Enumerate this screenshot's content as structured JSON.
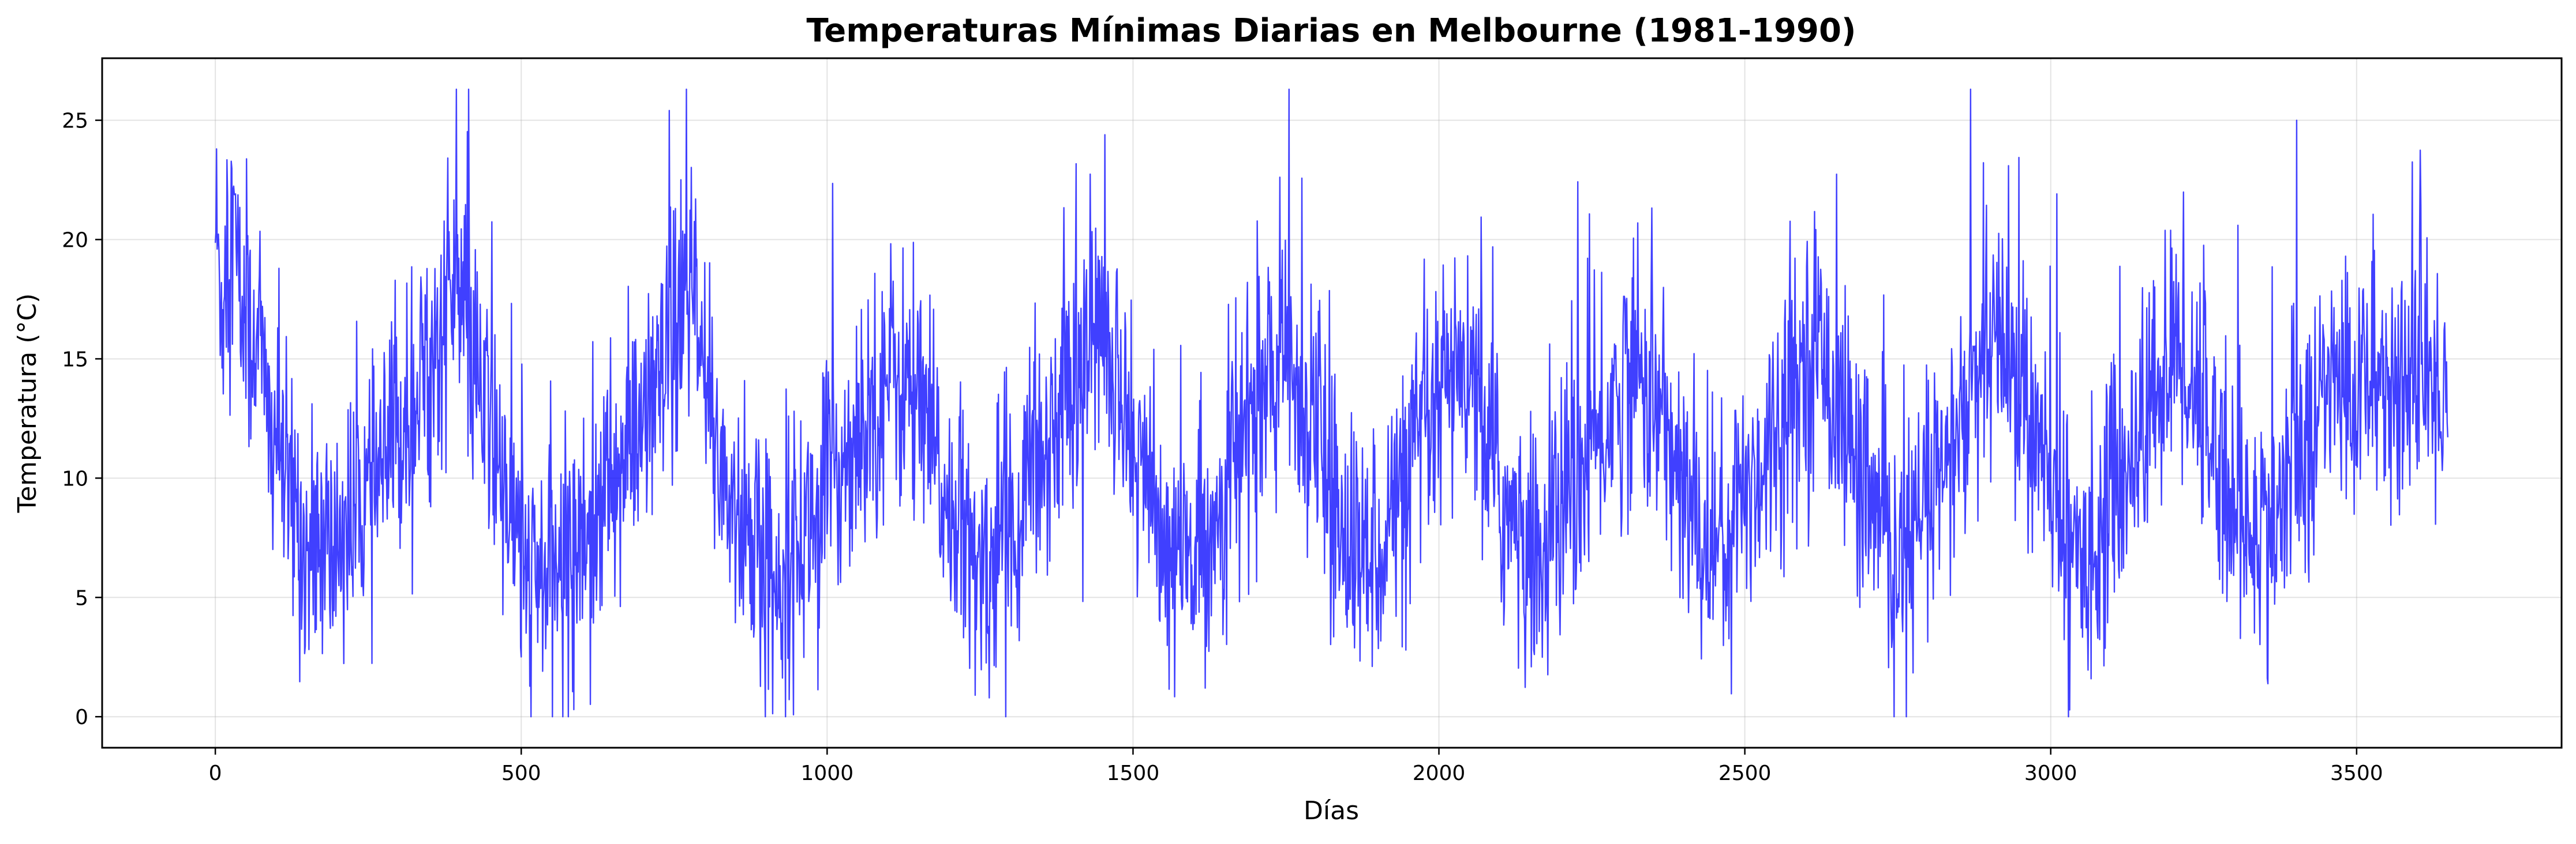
{
  "chart_data": {
    "type": "line",
    "title": "Temperaturas Mínimas Diarias en Melbourne (1981-1990)",
    "xlabel": "Días",
    "ylabel": "Temperatura (°C)",
    "xlim": [
      -185,
      3835
    ],
    "ylim": [
      -1.3,
      27.6
    ],
    "xticks": [
      0,
      500,
      1000,
      1500,
      2000,
      2500,
      3000,
      3500
    ],
    "yticks": [
      0,
      5,
      10,
      15,
      20,
      25
    ],
    "grid": true,
    "line_color": "#0000ff",
    "n_points": 3650,
    "series": [
      {
        "values_approx_every_10_days": [
          20.7,
          17.4,
          18.8,
          21.1,
          17.2,
          16.6,
          15.3,
          17.5,
          13.5,
          11.3,
          12.5,
          10.4,
          9.0,
          8.9,
          7.8,
          6.8,
          6.1,
          7.5,
          6.9,
          6.6,
          7.4,
          8.1,
          7.8,
          8.4,
          9.3,
          8.9,
          9.3,
          10.1,
          10.6,
          11.0,
          11.7,
          12.6,
          12.8,
          13.6,
          13.9,
          14.8,
          15.2,
          16.0,
          17.9,
          18.1,
          17.5,
          15.7,
          15.0,
          13.6,
          12.8,
          11.9,
          10.4,
          9.8,
          8.8,
          8.0,
          7.0,
          5.6,
          5.3,
          5.8,
          6.1,
          5.7,
          6.4,
          6.3,
          6.8,
          7.4,
          7.4,
          8.3,
          8.0,
          8.5,
          9.3,
          9.6,
          10.1,
          10.4,
          11.3,
          11.9,
          12.1,
          12.8,
          13.4,
          13.5,
          14.6,
          15.7,
          16.4,
          17.6,
          17.9,
          15.3,
          13.3,
          12.3,
          11.4,
          10.4,
          9.3,
          8.6,
          7.9,
          7.0,
          7.1,
          6.4,
          6.0,
          5.9,
          6.4,
          6.1,
          7.0,
          7.3,
          7.5,
          8.2,
          8.5,
          8.6,
          9.5,
          10.0,
          10.5,
          10.8,
          11.4,
          12.0,
          12.5,
          12.9,
          13.5,
          14.0,
          14.2,
          14.6,
          13.9,
          13.8,
          13.3,
          12.4,
          12.0,
          11.4,
          10.3,
          9.2,
          8.8,
          7.9,
          7.2,
          6.4,
          6.1,
          5.7,
          6.6,
          6.4,
          7.6,
          7.8,
          8.3,
          8.3,
          9.2,
          9.3,
          10.5,
          10.9,
          11.5,
          12.5,
          12.8,
          13.6,
          14.0,
          14.5,
          15.1,
          15.7,
          16.0,
          16.4,
          15.5,
          15.1,
          13.8,
          12.6,
          11.8,
          10.5,
          9.7,
          8.7,
          7.9,
          7.0,
          6.5,
          6.3,
          6.6,
          6.8,
          6.4,
          7.4,
          7.6,
          7.9,
          8.6,
          9.3,
          10.3,
          10.9,
          11.8,
          12.1,
          12.8,
          13.2,
          13.9,
          14.1,
          14.6,
          14.8,
          14.1,
          13.8,
          13.1,
          12.4,
          11.6,
          10.3,
          9.5,
          8.4,
          7.8,
          7.4,
          6.9,
          6.4,
          6.5,
          7.0,
          7.3,
          7.8,
          8.3,
          8.9,
          9.2,
          10.0,
          10.6,
          11.1,
          11.7,
          12.1,
          12.9,
          13.4,
          13.6,
          14.3,
          14.4,
          13.7,
          13.1,
          12.4,
          11.3,
          10.3,
          9.4,
          8.6,
          7.9,
          7.0,
          6.3,
          6.1,
          6.6,
          6.8,
          7.3,
          8.0,
          8.5,
          9.2,
          9.5,
          10.0,
          10.5,
          11.1,
          11.6,
          12.0,
          12.6,
          13.2,
          13.9,
          14.6,
          14.4,
          14.1,
          14.0,
          13.6,
          12.7,
          12.2,
          11.0,
          10.0,
          9.2,
          8.7,
          8.1,
          7.4,
          7.1,
          7.2,
          7.4,
          7.7,
          8.4,
          8.8,
          9.4,
          10.0,
          10.3,
          10.9,
          11.4,
          12.1,
          12.7,
          13.5,
          13.9,
          14.5,
          15.2,
          15.4,
          15.6,
          14.8,
          14.2,
          13.5,
          12.5,
          11.7,
          10.8,
          9.8,
          9.1,
          8.5,
          7.7,
          7.2,
          6.5,
          6.4,
          6.9,
          7.3,
          7.7,
          8.3,
          8.8,
          9.5,
          10.0,
          10.5,
          11.2,
          11.8,
          12.5,
          13.2,
          13.8,
          14.3,
          15.0,
          15.4,
          15.9,
          15.1,
          14.6,
          13.9,
          12.9,
          12.0,
          11.1,
          10.2,
          9.1,
          8.6,
          7.8,
          7.3,
          6.8,
          6.6,
          7.0,
          7.3,
          7.9,
          8.3,
          9.0,
          9.8,
          10.3,
          10.9,
          11.5,
          12.1,
          12.7,
          13.4,
          13.9,
          14.5,
          15.0,
          15.3,
          14.7,
          14.1,
          13.7,
          12.8,
          12.0,
          11.2,
          10.2,
          9.3,
          8.7,
          8.2,
          7.8,
          7.5,
          7.3,
          7.6,
          8.0,
          8.4,
          8.9,
          9.6,
          10.2,
          10.9,
          11.6,
          12.3,
          12.9,
          13.6,
          13.9
        ]
      }
    ]
  }
}
